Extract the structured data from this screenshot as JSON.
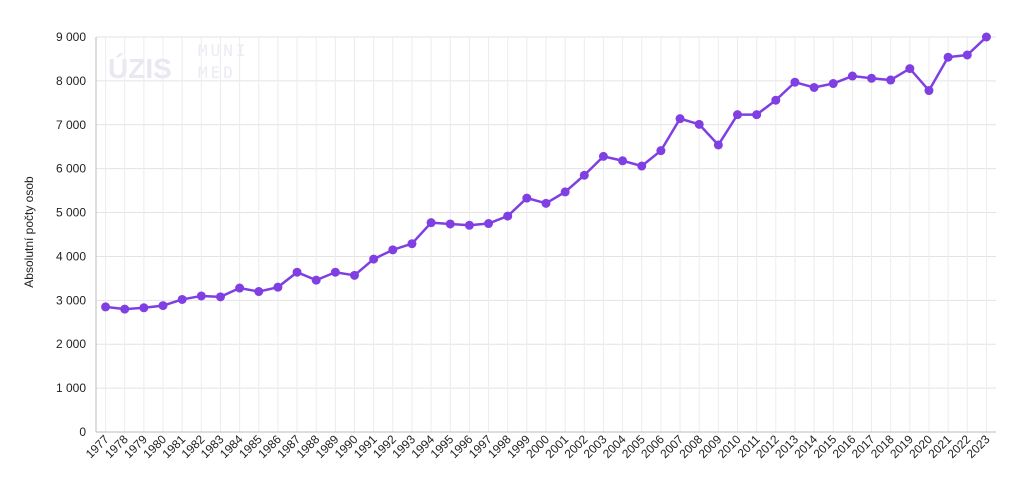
{
  "chart_data": {
    "type": "line",
    "y_label": "Absolutní počty osob",
    "watermark": [
      "ÚZIS",
      "MUNI",
      "MED"
    ],
    "categories": [
      "1977",
      "1978",
      "1979",
      "1980",
      "1981",
      "1982",
      "1983",
      "1984",
      "1985",
      "1986",
      "1987",
      "1988",
      "1989",
      "1990",
      "1991",
      "1992",
      "1993",
      "1994",
      "1995",
      "1996",
      "1997",
      "1998",
      "1999",
      "2000",
      "2001",
      "2002",
      "2003",
      "2004",
      "2005",
      "2006",
      "2007",
      "2008",
      "2009",
      "2010",
      "2011",
      "2012",
      "2013",
      "2014",
      "2015",
      "2016",
      "2017",
      "2018",
      "2019",
      "2020",
      "2021",
      "2022",
      "2023"
    ],
    "values": [
      2850,
      2800,
      2830,
      2880,
      3020,
      3100,
      3080,
      3280,
      3200,
      3300,
      3640,
      3460,
      3640,
      3570,
      3940,
      4150,
      4290,
      4770,
      4740,
      4710,
      4750,
      4920,
      5330,
      5210,
      5470,
      5850,
      6280,
      6180,
      6060,
      6410,
      7140,
      7010,
      6540,
      7230,
      7230,
      7560,
      7970,
      7850,
      7940,
      8110,
      8060,
      8020,
      8280,
      7780,
      8540,
      8590,
      9000
    ],
    "color": "#7f3fe3",
    "ylim": [
      0,
      9000
    ],
    "yticks": [
      0,
      {
        "value": 1000,
        "label": "1 000"
      },
      {
        "value": 2000,
        "label": "2 000"
      },
      {
        "value": 3000,
        "label": "3 000"
      },
      {
        "value": 4000,
        "label": "4 000"
      },
      {
        "value": 5000,
        "label": "5 000"
      },
      {
        "value": 6000,
        "label": "6 000"
      },
      {
        "value": 7000,
        "label": "7 000"
      },
      {
        "value": 8000,
        "label": "8 000"
      },
      {
        "value": 9000,
        "label": "9 000"
      }
    ],
    "grid": true
  }
}
